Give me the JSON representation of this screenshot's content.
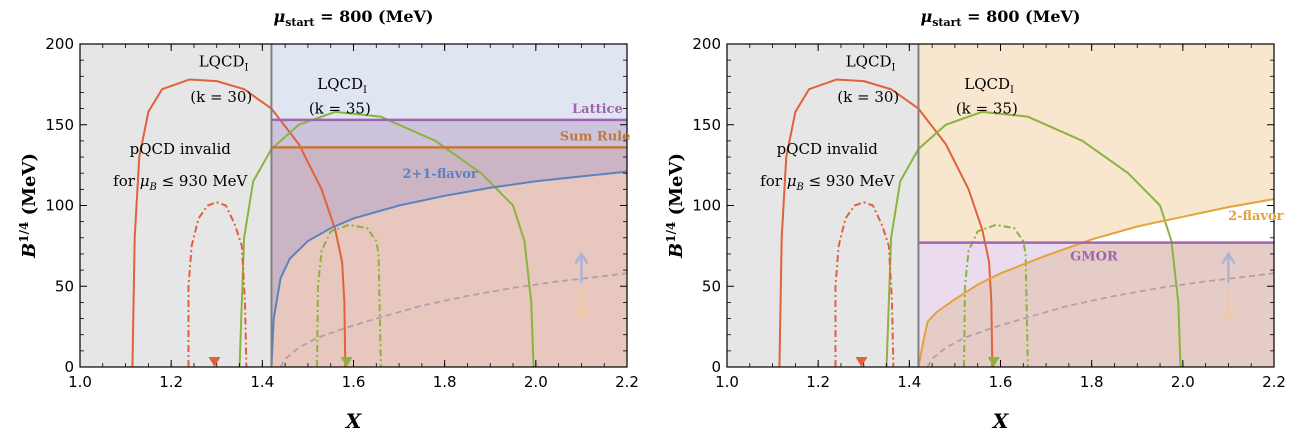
{
  "chart_data": [
    {
      "type": "line",
      "title": "μ_start = 800 (MeV)",
      "title_main": "μ",
      "title_sub": "start",
      "title_rest": " = 800 (MeV)",
      "xlabel": "X",
      "ylabel_main": "B",
      "ylabel_sup": "1/4",
      "ylabel_unit": " (MeV)",
      "xlim": [
        1.0,
        2.2
      ],
      "ylim": [
        0,
        200
      ],
      "xticks": [
        "1.0",
        "1.2",
        "1.4",
        "1.6",
        "1.8",
        "2.0",
        "2.2"
      ],
      "yticks": [
        "0",
        "50",
        "100",
        "150",
        "200"
      ],
      "invalid_text_1": "pQCD invalid",
      "invalid_text_2": "for μ_B ≤ 930 MeV",
      "invalid_text_2_a": "for ",
      "invalid_text_2_mu": "μ",
      "invalid_text_2_sub": "B",
      "invalid_text_2_b": " ≤ 930 MeV",
      "invalid_x_max": 1.42,
      "lqcd30_label_1": "LQCD",
      "lqcd30_label_sub": "I",
      "lqcd30_label_2": "(k = 30)",
      "lqcd35_label_1": "LQCD",
      "lqcd35_label_sub": "I",
      "lqcd35_label_2": "(k = 35)",
      "lqcd30_marker_x": 1.295,
      "lqcd35_marker_x": 1.585,
      "hlines": [
        {
          "name": "Lattice",
          "y": 153,
          "color": "#a065b0"
        },
        {
          "name": "Sum Rule",
          "y": 136,
          "color": "#c07a3d"
        }
      ],
      "band_label": "2+1-flavor",
      "band_color": "#5b82c0",
      "band_points": [
        [
          1.42,
          0
        ],
        [
          1.425,
          30
        ],
        [
          1.44,
          55
        ],
        [
          1.46,
          67
        ],
        [
          1.5,
          78
        ],
        [
          1.55,
          86
        ],
        [
          1.6,
          92
        ],
        [
          1.7,
          100
        ],
        [
          1.8,
          106
        ],
        [
          1.9,
          111
        ],
        [
          2.0,
          115
        ],
        [
          2.1,
          118
        ],
        [
          2.2,
          121
        ]
      ],
      "series": [
        {
          "name": "LQCD_I (k = 30)",
          "color": "#e0623b",
          "style": "solid",
          "points": [
            [
              1.115,
              0
            ],
            [
              1.12,
              80
            ],
            [
              1.13,
              130
            ],
            [
              1.15,
              158
            ],
            [
              1.18,
              172
            ],
            [
              1.24,
              178
            ],
            [
              1.3,
              177
            ],
            [
              1.36,
              172
            ],
            [
              1.42,
              160
            ],
            [
              1.48,
              138
            ],
            [
              1.53,
              110
            ],
            [
              1.56,
              85
            ],
            [
              1.575,
              65
            ],
            [
              1.58,
              40
            ],
            [
              1.582,
              0
            ]
          ]
        },
        {
          "name": "LQCD_I (k = 35)",
          "color": "#8bb33f",
          "style": "solid",
          "points": [
            [
              1.35,
              0
            ],
            [
              1.36,
              80
            ],
            [
              1.38,
              115
            ],
            [
              1.42,
              135
            ],
            [
              1.48,
              150
            ],
            [
              1.56,
              158
            ],
            [
              1.66,
              155
            ],
            [
              1.78,
              140
            ],
            [
              1.88,
              120
            ],
            [
              1.95,
              100
            ],
            [
              1.975,
              78
            ],
            [
              1.99,
              40
            ],
            [
              1.995,
              0
            ]
          ]
        },
        {
          "name": "LQCD_I (k = 30) dash-dot",
          "color": "#e0623b",
          "style": "dashdot",
          "points": [
            [
              1.238,
              0
            ],
            [
              1.238,
              50
            ],
            [
              1.245,
              75
            ],
            [
              1.26,
              92
            ],
            [
              1.28,
              100
            ],
            [
              1.3,
              102
            ],
            [
              1.32,
              100
            ],
            [
              1.34,
              88
            ],
            [
              1.355,
              75
            ],
            [
              1.362,
              40
            ],
            [
              1.365,
              0
            ]
          ]
        },
        {
          "name": "LQCD_I (k = 35) dash-dot",
          "color": "#8bb33f",
          "style": "dashdot",
          "points": [
            [
              1.52,
              0
            ],
            [
              1.522,
              50
            ],
            [
              1.53,
              72
            ],
            [
              1.55,
              84
            ],
            [
              1.59,
              88
            ],
            [
              1.63,
              86
            ],
            [
              1.65,
              78
            ],
            [
              1.655,
              70
            ],
            [
              1.66,
              0
            ]
          ]
        },
        {
          "name": "dashed",
          "color": "#b0a0a8",
          "style": "dashed",
          "points": [
            [
              1.44,
              0
            ],
            [
              1.45,
              5
            ],
            [
              1.48,
              12
            ],
            [
              1.52,
              18
            ],
            [
              1.58,
              24
            ],
            [
              1.65,
              30
            ],
            [
              1.75,
              38
            ],
            [
              1.85,
              44
            ],
            [
              1.95,
              49
            ],
            [
              2.05,
              53
            ],
            [
              2.2,
              58
            ]
          ]
        }
      ],
      "arrows": {
        "x": 2.1,
        "up_color": "#aab4d6",
        "down_color": "#f1c8a4"
      }
    },
    {
      "type": "line",
      "title": "μ_start = 800 (MeV)",
      "title_main": "μ",
      "title_sub": "start",
      "title_rest": " = 800 (MeV)",
      "xlabel": "X",
      "ylabel_main": "B",
      "ylabel_sup": "1/4",
      "ylabel_unit": " (MeV)",
      "xlim": [
        1.0,
        2.2
      ],
      "ylim": [
        0,
        200
      ],
      "xticks": [
        "1.0",
        "1.2",
        "1.4",
        "1.6",
        "1.8",
        "2.0",
        "2.2"
      ],
      "yticks": [
        "0",
        "50",
        "100",
        "150",
        "200"
      ],
      "invalid_text_1": "pQCD invalid",
      "invalid_text_2": "for μ_B ≤ 930 MeV",
      "invalid_text_2_a": "for ",
      "invalid_text_2_mu": "μ",
      "invalid_text_2_sub": "B",
      "invalid_text_2_b": " ≤ 930 MeV",
      "invalid_x_max": 1.42,
      "lqcd30_label_1": "LQCD",
      "lqcd30_label_sub": "I",
      "lqcd30_label_2": "(k = 30)",
      "lqcd35_label_1": "LQCD",
      "lqcd35_label_sub": "I",
      "lqcd35_label_2": "(k = 35)",
      "lqcd30_marker_x": 1.295,
      "lqcd35_marker_x": 1.585,
      "hlines": [
        {
          "name": "GMOR",
          "y": 77,
          "color": "#a065b0"
        }
      ],
      "band_label": "2-flavor",
      "band_color": "#e3a33a",
      "band_points": [
        [
          1.42,
          0
        ],
        [
          1.43,
          15
        ],
        [
          1.44,
          28
        ],
        [
          1.46,
          34
        ],
        [
          1.5,
          42
        ],
        [
          1.55,
          51
        ],
        [
          1.6,
          58
        ],
        [
          1.7,
          69
        ],
        [
          1.8,
          79
        ],
        [
          1.9,
          87
        ],
        [
          2.0,
          93
        ],
        [
          2.1,
          99
        ],
        [
          2.2,
          104
        ]
      ],
      "series": [
        {
          "name": "LQCD_I (k = 30)",
          "color": "#e0623b",
          "style": "solid",
          "points": [
            [
              1.115,
              0
            ],
            [
              1.12,
              80
            ],
            [
              1.13,
              130
            ],
            [
              1.15,
              158
            ],
            [
              1.18,
              172
            ],
            [
              1.24,
              178
            ],
            [
              1.3,
              177
            ],
            [
              1.36,
              172
            ],
            [
              1.42,
              160
            ],
            [
              1.48,
              138
            ],
            [
              1.53,
              110
            ],
            [
              1.56,
              85
            ],
            [
              1.575,
              65
            ],
            [
              1.58,
              40
            ],
            [
              1.582,
              0
            ]
          ]
        },
        {
          "name": "LQCD_I (k = 35)",
          "color": "#8bb33f",
          "style": "solid",
          "points": [
            [
              1.35,
              0
            ],
            [
              1.36,
              80
            ],
            [
              1.38,
              115
            ],
            [
              1.42,
              135
            ],
            [
              1.48,
              150
            ],
            [
              1.56,
              158
            ],
            [
              1.66,
              155
            ],
            [
              1.78,
              140
            ],
            [
              1.88,
              120
            ],
            [
              1.95,
              100
            ],
            [
              1.975,
              78
            ],
            [
              1.99,
              40
            ],
            [
              1.995,
              0
            ]
          ]
        },
        {
          "name": "LQCD_I (k = 30) dash-dot",
          "color": "#e0623b",
          "style": "dashdot",
          "points": [
            [
              1.238,
              0
            ],
            [
              1.238,
              50
            ],
            [
              1.245,
              75
            ],
            [
              1.26,
              92
            ],
            [
              1.28,
              100
            ],
            [
              1.3,
              102
            ],
            [
              1.32,
              100
            ],
            [
              1.34,
              88
            ],
            [
              1.355,
              75
            ],
            [
              1.362,
              40
            ],
            [
              1.365,
              0
            ]
          ]
        },
        {
          "name": "LQCD_I (k = 35) dash-dot",
          "color": "#8bb33f",
          "style": "dashdot",
          "points": [
            [
              1.52,
              0
            ],
            [
              1.522,
              50
            ],
            [
              1.53,
              72
            ],
            [
              1.55,
              84
            ],
            [
              1.59,
              88
            ],
            [
              1.63,
              86
            ],
            [
              1.65,
              78
            ],
            [
              1.655,
              70
            ],
            [
              1.66,
              0
            ]
          ]
        },
        {
          "name": "dashed",
          "color": "#b0a0a8",
          "style": "dashed",
          "points": [
            [
              1.44,
              0
            ],
            [
              1.45,
              5
            ],
            [
              1.48,
              12
            ],
            [
              1.52,
              18
            ],
            [
              1.58,
              24
            ],
            [
              1.65,
              30
            ],
            [
              1.75,
              38
            ],
            [
              1.85,
              44
            ],
            [
              1.95,
              49
            ],
            [
              2.05,
              53
            ],
            [
              2.2,
              58
            ]
          ]
        }
      ],
      "arrows": {
        "x": 2.1,
        "up_color": "#aab4d6",
        "down_color": "#f1c8a4"
      }
    }
  ]
}
